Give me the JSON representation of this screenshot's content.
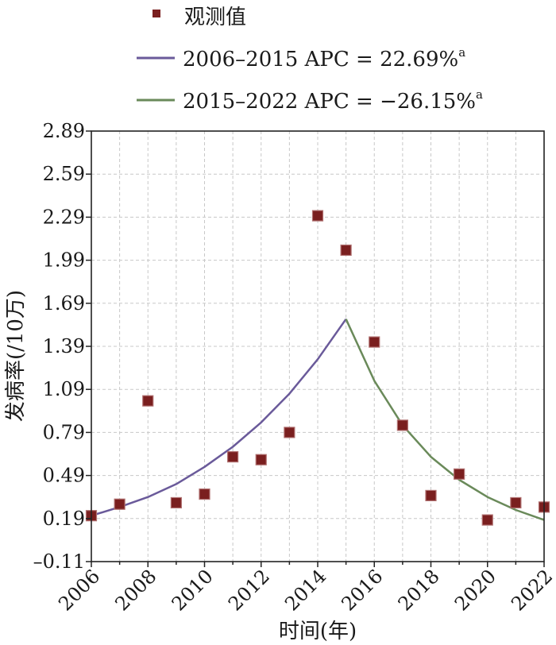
{
  "chart_data": {
    "type": "line",
    "xlabel": "时间(年)",
    "ylabel": "发病率(/10万)",
    "xlim": [
      2006,
      2022
    ],
    "ylim": [
      -0.11,
      2.89
    ],
    "x_ticks": [
      "2006",
      "2008",
      "2010",
      "2012",
      "2014",
      "2016",
      "2018",
      "2020",
      "2022"
    ],
    "y_ticks": [
      "-0.11",
      "0.19",
      "0.49",
      "0.79",
      "1.09",
      "1.39",
      "1.69",
      "1.99",
      "2.29",
      "2.59",
      "2.89"
    ],
    "grid": true,
    "legend_placement": "top",
    "observed": {
      "name": "观测值",
      "color": "#7a1f1f",
      "x": [
        2006,
        2007,
        2008,
        2009,
        2010,
        2011,
        2012,
        2013,
        2014,
        2015,
        2016,
        2017,
        2018,
        2019,
        2020,
        2021,
        2022
      ],
      "y": [
        0.21,
        0.29,
        1.01,
        0.3,
        0.36,
        0.62,
        0.6,
        0.79,
        2.3,
        2.06,
        1.42,
        0.84,
        0.35,
        0.5,
        0.18,
        0.3,
        0.27
      ]
    },
    "series": [
      {
        "name": "2006–2015 APC = 22.69%",
        "superscript": "a",
        "color": "#6a5a9a",
        "x": [
          2006,
          2007,
          2008,
          2009,
          2010,
          2011,
          2012,
          2013,
          2014,
          2015
        ],
        "y": [
          0.21,
          0.27,
          0.34,
          0.43,
          0.55,
          0.69,
          0.86,
          1.06,
          1.3,
          1.58
        ]
      },
      {
        "name": "2015–2022 APC = −26.15%",
        "superscript": "a",
        "color": "#6a8a5a",
        "x": [
          2015,
          2016,
          2017,
          2018,
          2019,
          2020,
          2021,
          2022
        ],
        "y": [
          1.58,
          1.15,
          0.84,
          0.62,
          0.46,
          0.34,
          0.25,
          0.18
        ]
      }
    ]
  }
}
